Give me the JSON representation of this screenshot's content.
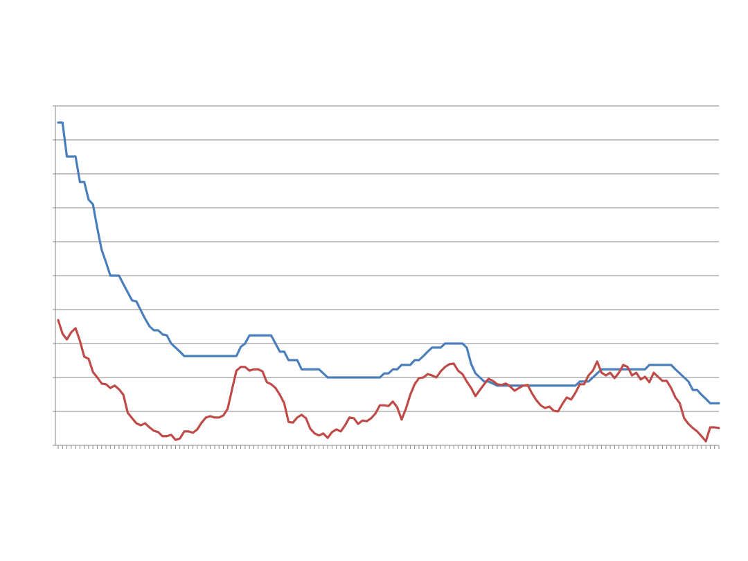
{
  "chart_data": {
    "type": "line",
    "grid": true,
    "ylim": [
      0,
      10
    ],
    "yticks": [
      0,
      1,
      2,
      3,
      4,
      5,
      6,
      7,
      8,
      9,
      10
    ],
    "categories": [
      null,
      null,
      null,
      null,
      null,
      null,
      null,
      null,
      null,
      null,
      null,
      null,
      null,
      null,
      null,
      null,
      null,
      null,
      null,
      null,
      null,
      null,
      null,
      null,
      null,
      null,
      null,
      null,
      null,
      null,
      null,
      null,
      null,
      null,
      null,
      null,
      null,
      null,
      null,
      null,
      null,
      null,
      null,
      null,
      null,
      null,
      null,
      null,
      null,
      null,
      null,
      null,
      null,
      null,
      null,
      null,
      null,
      null,
      null,
      null,
      null,
      null,
      null,
      null,
      null,
      null,
      null,
      null,
      null,
      null,
      null,
      null,
      null,
      null,
      null,
      null,
      null,
      null,
      null,
      null,
      null,
      null,
      null,
      null,
      null,
      null,
      null,
      null,
      null,
      null,
      null,
      null,
      null,
      null,
      null,
      null,
      null,
      null,
      null,
      null,
      null,
      null,
      null,
      null,
      null,
      null,
      null,
      null,
      null,
      null,
      null,
      null,
      null,
      null,
      null,
      null,
      null,
      null,
      null,
      null,
      null,
      null,
      null,
      null,
      null,
      null,
      null,
      null,
      null,
      null,
      null,
      null,
      null,
      null,
      null,
      null,
      null,
      null,
      null,
      null,
      null,
      null,
      null,
      null,
      null,
      null,
      null,
      null,
      null,
      null,
      null,
      null,
      null
    ],
    "series": [
      {
        "color": "#4a7ebb",
        "values": [
          9.51,
          9.51,
          8.51,
          8.51,
          8.51,
          7.76,
          7.76,
          7.24,
          7.1,
          6.4,
          5.76,
          5.4,
          5.0,
          5.0,
          5.0,
          4.75,
          4.51,
          4.27,
          4.24,
          3.98,
          3.73,
          3.51,
          3.39,
          3.39,
          3.27,
          3.24,
          3.0,
          2.88,
          2.76,
          2.63,
          2.63,
          2.63,
          2.63,
          2.63,
          2.63,
          2.63,
          2.63,
          2.63,
          2.63,
          2.63,
          2.63,
          2.63,
          2.9,
          3.0,
          3.24,
          3.24,
          3.24,
          3.24,
          3.24,
          3.24,
          3.0,
          2.76,
          2.76,
          2.51,
          2.51,
          2.51,
          2.24,
          2.24,
          2.24,
          2.24,
          2.24,
          2.12,
          2.0,
          2.0,
          2.0,
          2.0,
          2.0,
          2.0,
          2.0,
          2.0,
          2.0,
          2.0,
          2.0,
          2.0,
          2.0,
          2.12,
          2.12,
          2.24,
          2.24,
          2.37,
          2.37,
          2.37,
          2.51,
          2.51,
          2.63,
          2.76,
          2.88,
          2.88,
          2.88,
          3.0,
          3.0,
          3.0,
          3.0,
          3.0,
          2.88,
          2.4,
          2.12,
          2.0,
          1.88,
          1.88,
          1.82,
          1.76,
          1.76,
          1.76,
          1.76,
          1.76,
          1.76,
          1.76,
          1.76,
          1.76,
          1.76,
          1.76,
          1.76,
          1.76,
          1.76,
          1.76,
          1.76,
          1.76,
          1.76,
          1.76,
          1.88,
          1.88,
          1.88,
          2.0,
          2.12,
          2.24,
          2.24,
          2.24,
          2.24,
          2.24,
          2.24,
          2.24,
          2.24,
          2.24,
          2.24,
          2.24,
          2.37,
          2.37,
          2.37,
          2.37,
          2.37,
          2.37,
          2.24,
          2.12,
          2.0,
          1.88,
          1.63,
          1.63,
          1.49,
          1.37,
          1.24,
          1.24,
          1.24
        ]
      },
      {
        "color": "#be4b48",
        "values": [
          3.69,
          3.29,
          3.12,
          3.33,
          3.45,
          3.08,
          2.61,
          2.55,
          2.16,
          2.0,
          1.82,
          1.8,
          1.69,
          1.76,
          1.65,
          1.49,
          0.96,
          0.8,
          0.65,
          0.59,
          0.65,
          0.53,
          0.43,
          0.39,
          0.27,
          0.27,
          0.31,
          0.16,
          0.2,
          0.41,
          0.41,
          0.37,
          0.47,
          0.67,
          0.82,
          0.86,
          0.82,
          0.82,
          0.88,
          1.08,
          1.65,
          2.2,
          2.31,
          2.31,
          2.2,
          2.24,
          2.24,
          2.18,
          1.86,
          1.8,
          1.69,
          1.49,
          1.24,
          0.69,
          0.67,
          0.82,
          0.9,
          0.8,
          0.49,
          0.35,
          0.29,
          0.35,
          0.22,
          0.39,
          0.47,
          0.41,
          0.59,
          0.82,
          0.8,
          0.63,
          0.73,
          0.71,
          0.8,
          0.94,
          1.18,
          1.18,
          1.16,
          1.29,
          1.12,
          0.76,
          1.08,
          1.49,
          1.8,
          1.98,
          2.0,
          2.1,
          2.06,
          2.0,
          2.18,
          2.31,
          2.39,
          2.41,
          2.2,
          2.1,
          1.88,
          1.69,
          1.45,
          1.63,
          1.8,
          1.96,
          1.9,
          1.8,
          1.78,
          1.82,
          1.73,
          1.61,
          1.69,
          1.76,
          1.78,
          1.53,
          1.33,
          1.18,
          1.1,
          1.14,
          1.02,
          1.0,
          1.22,
          1.41,
          1.35,
          1.55,
          1.8,
          1.8,
          2.06,
          2.2,
          2.47,
          2.14,
          2.06,
          2.14,
          1.98,
          2.14,
          2.37,
          2.31,
          2.06,
          2.14,
          1.94,
          2.02,
          1.86,
          2.14,
          2.02,
          1.9,
          1.9,
          1.69,
          1.41,
          1.24,
          0.8,
          0.63,
          0.51,
          0.41,
          0.27,
          0.12,
          0.53,
          0.53,
          0.51
        ]
      }
    ]
  }
}
